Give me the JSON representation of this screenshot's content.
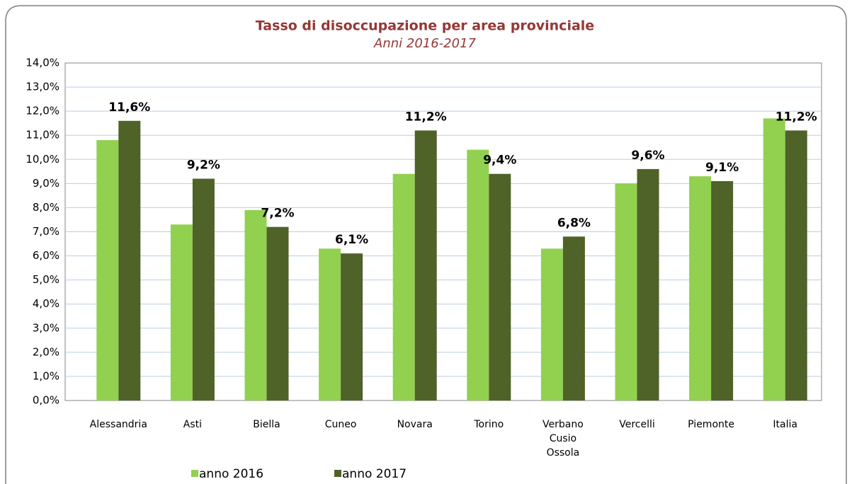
{
  "chart_data": {
    "type": "bar",
    "title": "Tasso di disoccupazione per area provinciale",
    "subtitle": "Anni 2016-2017",
    "categories": [
      "Alessandria",
      "Asti",
      "Biella",
      "Cuneo",
      "Novara",
      "Torino",
      "Verbano Cusio Ossola",
      "Vercelli",
      "Piemonte",
      "Italia"
    ],
    "series": [
      {
        "name": "anno 2016",
        "color": "#92d050",
        "values": [
          10.8,
          7.3,
          7.9,
          6.3,
          9.4,
          10.4,
          6.3,
          9.0,
          9.3,
          11.7
        ]
      },
      {
        "name": "anno 2017",
        "color": "#4f6228",
        "values": [
          11.6,
          9.2,
          7.2,
          6.1,
          11.2,
          9.4,
          6.8,
          9.6,
          9.1,
          11.2
        ],
        "value_labels": [
          "11,6%",
          "9,2%",
          "7,2%",
          "6,1%",
          "11,2%",
          "9,4%",
          "6,8%",
          "9,6%",
          "9,1%",
          "11,2%"
        ]
      }
    ],
    "ylim": [
      0,
      14
    ],
    "yticks": [
      {
        "value": 0,
        "label": "0,0%"
      },
      {
        "value": 1,
        "label": "1,0%"
      },
      {
        "value": 2,
        "label": "2,0%"
      },
      {
        "value": 3,
        "label": "3,0%"
      },
      {
        "value": 4,
        "label": "4,0%"
      },
      {
        "value": 5,
        "label": "5,0%"
      },
      {
        "value": 6,
        "label": "6,0%"
      },
      {
        "value": 7,
        "label": "7,0%"
      },
      {
        "value": 8,
        "label": "8,0%"
      },
      {
        "value": 9,
        "label": "9,0%"
      },
      {
        "value": 10,
        "label": "10,0%"
      },
      {
        "value": 11,
        "label": "11,0%"
      },
      {
        "value": 12,
        "label": "12,0%"
      },
      {
        "value": 13,
        "label": "13,0%"
      },
      {
        "value": 14,
        "label": "14,0%"
      }
    ],
    "grid": true,
    "legend": "bottom"
  }
}
